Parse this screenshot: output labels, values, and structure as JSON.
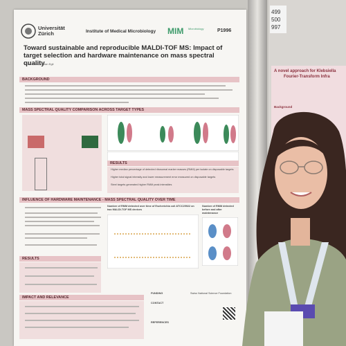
{
  "left_poster": {
    "university": "Universität Zürich",
    "institute": "Institute of Medical Microbiology",
    "mim": "MIM",
    "mim_sub": "Microbiology",
    "poster_id": "P1996",
    "title": "Toward sustainable and reproducible MALDI-TOF MS: Impact of target selection and hardware maintenance on mass spectral quality",
    "authors": "Tobias Güldi, Adrian Egli",
    "sections": [
      "BACKGROUND",
      "MASS SPECTRAL QUALITY COMPARISON ACROSS TARGET TYPES",
      "RESULTS",
      "INFLUENCE OF HARDWARE MAINTENANCE - MASS SPECTRAL QUALITY OVER TIME",
      "RESULTS",
      "IMPACT AND RELEVANCE"
    ],
    "results_1": [
      "Higher median percentage of detected ribosomal marker masses (RMM) per isolate on disposable targets",
      "Higher total signal intensity and lower measurement error measured on disposable targets",
      "Steel targets generated higher RMM peak intensities"
    ],
    "plot_caption": "Number of RMM detected over time of Escherichia coli ATCC25922 on two MALDI-TOF MS devices",
    "plot_caption_2": "Number of RMM detected before and after maintenance",
    "footer": [
      "FUNDING",
      "CONTACT",
      "REFERENCES"
    ],
    "funder": "Swiss National Science Foundation"
  },
  "right_poster": {
    "numbers": [
      "499",
      "500",
      "997"
    ],
    "title": "A novel approach for Klebsiella",
    "subtitle": "Fourier-Transform Infra",
    "heading": "Background"
  }
}
